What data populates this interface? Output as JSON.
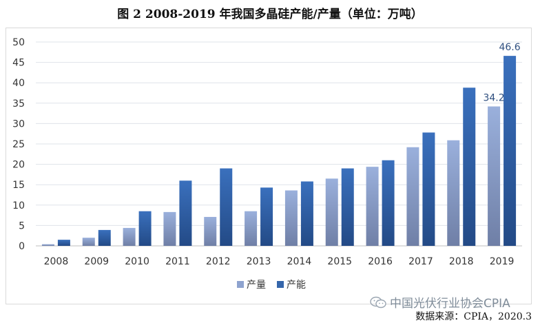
{
  "chart_data": {
    "type": "bar",
    "title": "图  2 2008-2019 年我国多晶硅产能/产量（单位：万吨）",
    "categories": [
      "2008",
      "2009",
      "2010",
      "2011",
      "2012",
      "2013",
      "2014",
      "2015",
      "2016",
      "2017",
      "2018",
      "2019"
    ],
    "series": [
      {
        "name": "产量",
        "values": [
          0.4,
          2.0,
          4.4,
          8.3,
          7.1,
          8.5,
          13.6,
          16.5,
          19.4,
          24.2,
          25.9,
          34.2
        ],
        "color": "#8ea3cf"
      },
      {
        "name": "产能",
        "values": [
          1.5,
          3.9,
          8.5,
          16.0,
          19.0,
          14.3,
          15.8,
          19.0,
          21.0,
          27.8,
          38.8,
          46.6
        ],
        "color": "#3566ab"
      }
    ],
    "data_labels": [
      {
        "series": 0,
        "index": 11,
        "text": "34.2"
      },
      {
        "series": 1,
        "index": 11,
        "text": "46.6"
      }
    ],
    "ylim": [
      0,
      50
    ],
    "yticks": [
      "0",
      "5",
      "10",
      "15",
      "20",
      "25",
      "30",
      "35",
      "40",
      "45",
      "50"
    ],
    "xlabel": "",
    "ylabel": "",
    "grid": true,
    "legend_position": "bottom"
  },
  "watermark": {
    "text": "中国光伏行业协会CPIA",
    "icon": "wechat-icon"
  },
  "source": "数据来源：CPIA，2020.3"
}
